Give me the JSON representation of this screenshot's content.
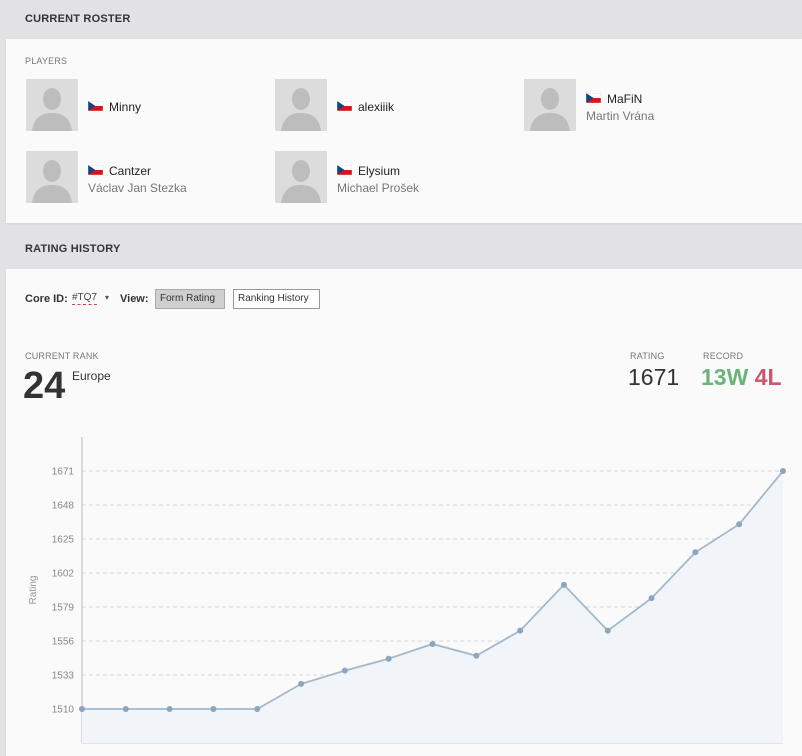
{
  "roster": {
    "header": "CURRENT ROSTER",
    "players_label": "PLAYERS",
    "players": [
      {
        "nick": "Minny",
        "name": "",
        "flag": "cz-flag"
      },
      {
        "nick": "alexiiik",
        "name": "",
        "flag": "cz-flag"
      },
      {
        "nick": "MaFiN",
        "name": "Martin Vrána",
        "flag": "cz-flag"
      },
      {
        "nick": "Cantzer",
        "name": "Václav Jan Stezka",
        "flag": "cz-flag"
      },
      {
        "nick": "Elysium",
        "name": "Michael Prošek",
        "flag": "cz-flag"
      }
    ]
  },
  "rating": {
    "header": "RATING HISTORY",
    "core_id_label": "Core ID:",
    "core_id_value": "#TQ7",
    "view_label": "View:",
    "view_options": [
      "Form Rating",
      "Ranking History"
    ],
    "view_selected": "Form Rating",
    "current_rank_label": "CURRENT RANK",
    "current_rank": "24",
    "region": "Europe",
    "rating_label": "RATING",
    "rating_value": "1671",
    "record_label": "RECORD",
    "wins": "13W",
    "losses": "4L"
  },
  "colors": {
    "wins": "#6bb37b",
    "losses": "#c9576f",
    "line": "#a3b8cc",
    "point": "#8ba6bf",
    "area": "#f1f4f8"
  },
  "chart_data": {
    "type": "line",
    "ylabel": "Rating",
    "yticks": [
      1510,
      1533,
      1556,
      1579,
      1602,
      1625,
      1648,
      1671
    ],
    "ylim": [
      1487,
      1694
    ],
    "grid": true,
    "series": [
      {
        "values": [
          1510,
          1510,
          1510,
          1510,
          1510,
          1527,
          1536,
          1544,
          1554,
          1546,
          1563,
          1594,
          1563,
          1585,
          1616,
          1635,
          1671
        ]
      }
    ]
  }
}
